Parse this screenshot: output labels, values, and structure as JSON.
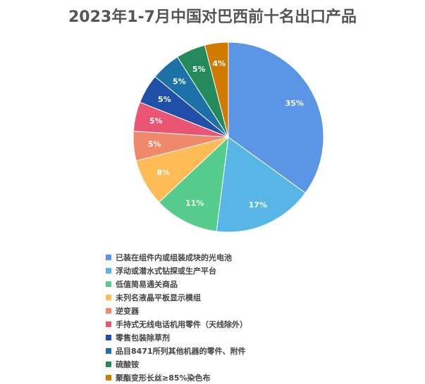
{
  "chart_data": {
    "type": "pie",
    "title": "2023年1-7月中国对巴西前十名出口产品",
    "slices": [
      {
        "label": "已装在组件内或组装成块的光电池",
        "value": 35,
        "data_label": "35%",
        "color": "#5b96e6"
      },
      {
        "label": "浮动或潜水式钻探或生产平台",
        "value": 17,
        "data_label": "17%",
        "color": "#58b6e6"
      },
      {
        "label": "低值简易通关商品",
        "value": 11,
        "data_label": "11%",
        "color": "#55cc8c"
      },
      {
        "label": "未列名液晶平板显示模组",
        "value": 8,
        "data_label": "8%",
        "color": "#ffbb55"
      },
      {
        "label": "逆变器",
        "value": 5,
        "data_label": "5%",
        "color": "#f0896c"
      },
      {
        "label": "手持式无线电话机用零件（天线除外）",
        "value": 5,
        "data_label": "5%",
        "color": "#ea5573"
      },
      {
        "label": "零售包装除草剂",
        "value": 5,
        "data_label": "5%",
        "color": "#1f4fa8"
      },
      {
        "label": "品目8471所列其他机器的零件、附件",
        "value": 5,
        "data_label": "5%",
        "color": "#1c72a8"
      },
      {
        "label": "硫酸铵",
        "value": 5,
        "data_label": "5%",
        "color": "#248a5a"
      },
      {
        "label": "聚酯变形长丝≥85%染色布",
        "value": 4,
        "data_label": "4%",
        "color": "#d17a00"
      }
    ],
    "legend_position": "bottom"
  }
}
